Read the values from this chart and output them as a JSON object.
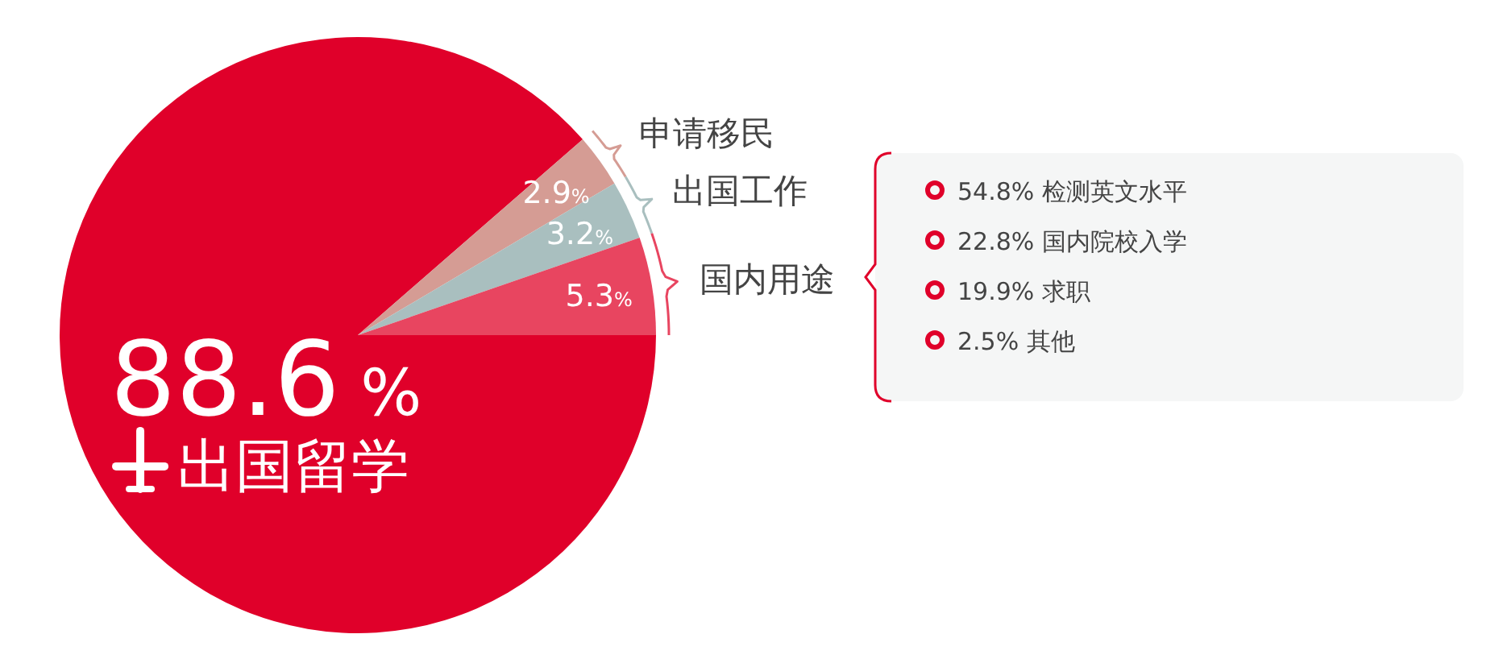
{
  "chart_data": {
    "type": "pie",
    "categories": [
      "出国留学",
      "申请移民",
      "出国工作",
      "国内用途"
    ],
    "values": [
      88.6,
      2.9,
      3.2,
      5.3
    ],
    "colors": [
      "#e0002a",
      "#d59c94",
      "#a9bfbf",
      "#e84560"
    ],
    "value_labels": [
      "88.6 %",
      "2.9%",
      "3.2%",
      "5.3%"
    ],
    "legend": "right",
    "annotations": [
      "54.8% 检测英文水平",
      "22.8% 国内院校入学",
      "19.9% 求职",
      "2.5% 其他"
    ]
  }
}
